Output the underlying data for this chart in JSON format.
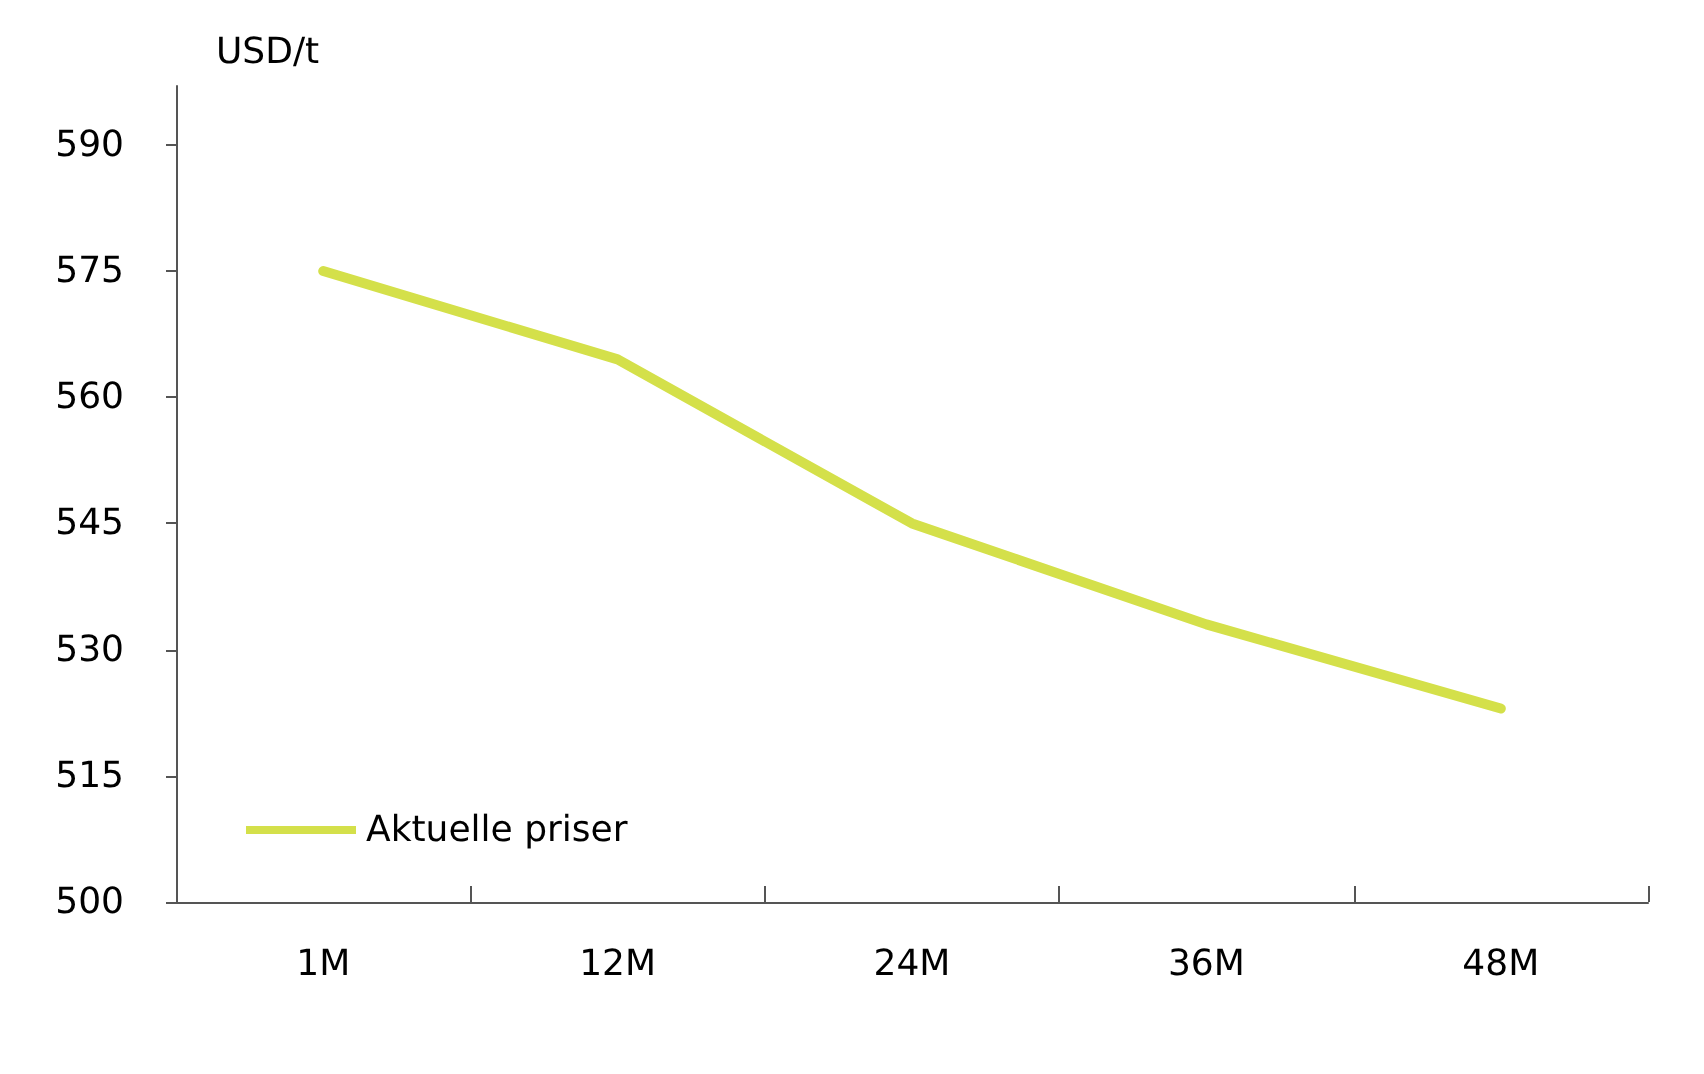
{
  "chart_data": {
    "type": "line",
    "ylabel": "USD/t",
    "categories": [
      "1M",
      "12M",
      "24M",
      "36M",
      "48M"
    ],
    "series": [
      {
        "name": "Aktuelle priser",
        "color": "#d4e04a",
        "values": [
          575,
          564.5,
          545,
          533,
          523
        ]
      }
    ],
    "ylim": [
      500,
      597
    ],
    "yticks": [
      500,
      515,
      530,
      545,
      560,
      575,
      590
    ],
    "grid": false,
    "legend": "bottom left",
    "marker": "none",
    "line_style": "solid"
  }
}
